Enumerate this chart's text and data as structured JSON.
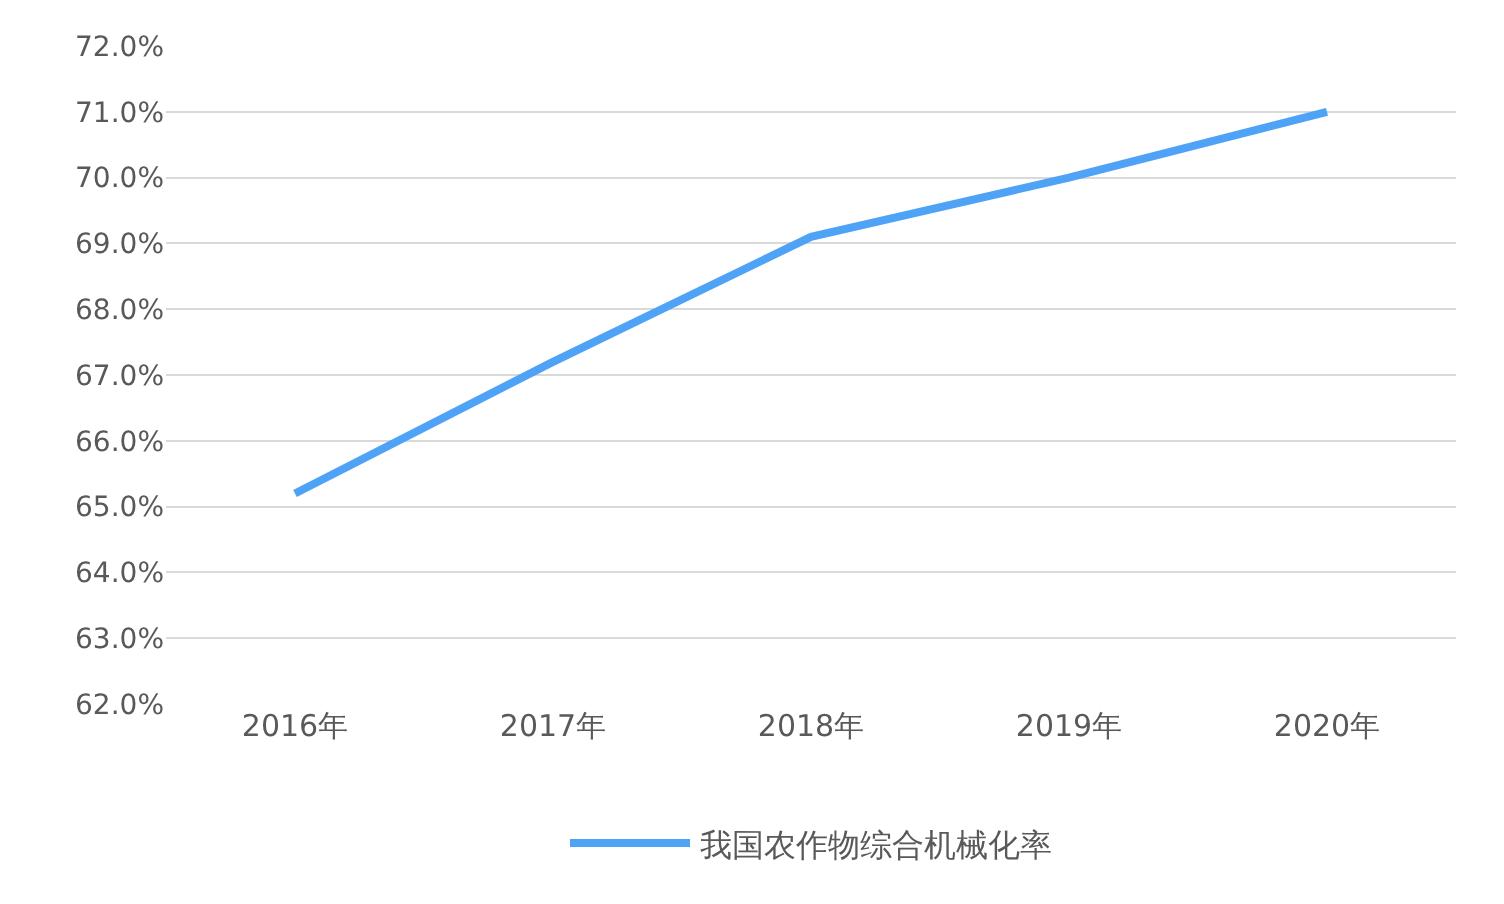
{
  "chart_data": {
    "type": "line",
    "categories": [
      "2016年",
      "2017年",
      "2018年",
      "2019年",
      "2020年"
    ],
    "series": [
      {
        "name": "我国农作物综合机械化率",
        "color": "#4ea3f7",
        "values": [
          65.2,
          67.2,
          69.1,
          70.0,
          71.0
        ]
      }
    ],
    "ylim": [
      62,
      72
    ],
    "yticks": [
      {
        "value": 62,
        "label": "62.0%"
      },
      {
        "value": 63,
        "label": "63.0%"
      },
      {
        "value": 64,
        "label": "64.0%"
      },
      {
        "value": 65,
        "label": "65.0%"
      },
      {
        "value": 66,
        "label": "66.0%"
      },
      {
        "value": 67,
        "label": "67.0%"
      },
      {
        "value": 68,
        "label": "68.0%"
      },
      {
        "value": 69,
        "label": "69.0%"
      },
      {
        "value": 70,
        "label": "70.0%"
      },
      {
        "value": 71,
        "label": "71.0%"
      },
      {
        "value": 72,
        "label": "72.0%"
      }
    ],
    "grid": "y",
    "legend": "bottom"
  }
}
